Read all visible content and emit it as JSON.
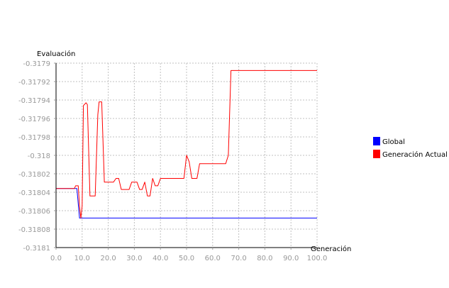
{
  "chart_data": {
    "type": "line",
    "xlabel": "Generación",
    "ylabel": "Evaluación",
    "xlim": [
      0,
      100
    ],
    "ylim": [
      -0.3181,
      -0.3179
    ],
    "x_ticks": [
      "0.0",
      "10.0",
      "20.0",
      "30.0",
      "40.0",
      "50.0",
      "60.0",
      "70.0",
      "80.0",
      "90.0",
      "100.0"
    ],
    "y_ticks": [
      "-0.3179",
      "-0.31792",
      "-0.31794",
      "-0.31796",
      "-0.31798",
      "-0.318",
      "-0.31802",
      "-0.31804",
      "-0.31806",
      "-0.31808",
      "-0.3181"
    ],
    "grid": true,
    "legend_position": "right",
    "series": [
      {
        "name": "Global",
        "color": "#0000ff",
        "points": [
          [
            0,
            -0.318036
          ],
          [
            8,
            -0.318036
          ],
          [
            9,
            -0.318068
          ],
          [
            100,
            -0.318068
          ]
        ]
      },
      {
        "name": "Generación Actual",
        "color": "#ff0000",
        "points": [
          [
            0,
            -0.318036
          ],
          [
            7,
            -0.318036
          ],
          [
            7.5,
            -0.318033
          ],
          [
            8.5,
            -0.318033
          ],
          [
            9,
            -0.318055
          ],
          [
            9.5,
            -0.318068
          ],
          [
            10,
            -0.318055
          ],
          [
            10.5,
            -0.317946
          ],
          [
            11.5,
            -0.317943
          ],
          [
            12,
            -0.317945
          ],
          [
            13,
            -0.318044
          ],
          [
            15,
            -0.318044
          ],
          [
            16,
            -0.317956
          ],
          [
            16.5,
            -0.317942
          ],
          [
            17.5,
            -0.317942
          ],
          [
            18.5,
            -0.318029
          ],
          [
            22,
            -0.318029
          ],
          [
            23,
            -0.318025
          ],
          [
            24,
            -0.318025
          ],
          [
            25,
            -0.318037
          ],
          [
            28,
            -0.318037
          ],
          [
            29,
            -0.318029
          ],
          [
            31,
            -0.318029
          ],
          [
            32,
            -0.318037
          ],
          [
            33,
            -0.318037
          ],
          [
            34,
            -0.318029
          ],
          [
            35,
            -0.318044
          ],
          [
            36,
            -0.318044
          ],
          [
            37,
            -0.318025
          ],
          [
            38,
            -0.318033
          ],
          [
            39,
            -0.318033
          ],
          [
            40,
            -0.318025
          ],
          [
            49,
            -0.318025
          ],
          [
            50,
            -0.318
          ],
          [
            51,
            -0.318007
          ],
          [
            52,
            -0.318025
          ],
          [
            54,
            -0.318025
          ],
          [
            55,
            -0.318009
          ],
          [
            65,
            -0.318009
          ],
          [
            66,
            -0.318
          ],
          [
            67,
            -0.317908
          ],
          [
            100,
            -0.317908
          ]
        ]
      }
    ]
  }
}
